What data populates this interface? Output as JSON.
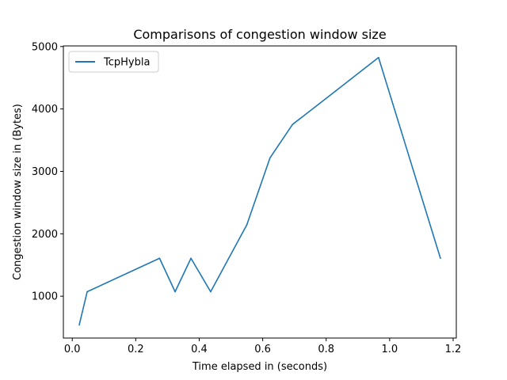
{
  "chart_data": {
    "type": "line",
    "title": "Comparisons of congestion window size",
    "xlabel": "Time elapsed in (seconds)",
    "ylabel": "Congestion window size in (Bytes)",
    "xlim": [
      -0.028,
      1.21
    ],
    "ylim": [
      330,
      5010
    ],
    "xticks": [
      0.0,
      0.2,
      0.4,
      0.6,
      0.8,
      1.0,
      1.2
    ],
    "xtick_labels": [
      "0.0",
      "0.2",
      "0.4",
      "0.6",
      "0.8",
      "1.0",
      "1.2"
    ],
    "yticks": [
      1000,
      2000,
      3000,
      4000,
      5000
    ],
    "ytick_labels": [
      "1000",
      "2000",
      "3000",
      "4000",
      "5000"
    ],
    "grid": false,
    "legend_position": "top-left",
    "series": [
      {
        "name": "TcpHybla",
        "color": "#1f77b4",
        "x": [
          0.022,
          0.047,
          0.275,
          0.324,
          0.374,
          0.436,
          0.55,
          0.623,
          0.694,
          0.83,
          0.965,
          1.16
        ],
        "y": [
          540,
          1072,
          1608,
          1072,
          1608,
          1072,
          2144,
          3216,
          3752,
          4288,
          4824,
          1608
        ]
      }
    ]
  }
}
